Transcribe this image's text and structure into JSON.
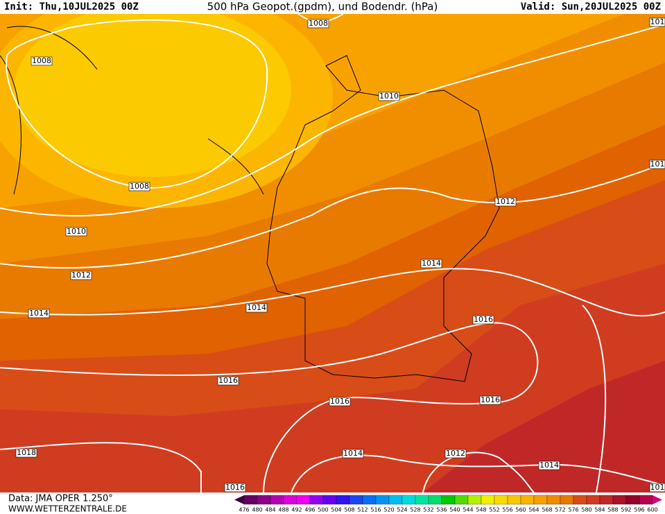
{
  "header": {
    "init": "Init: Thu,10JUL2025 00Z",
    "title": "500 hPa Geopot.(gpdm), und Bodendr. (hPa)",
    "valid": "Valid: Sun,20JUL2025 00Z"
  },
  "isobar_labels": [
    1008,
    1008,
    1010,
    1008,
    1012,
    1010,
    1012,
    1014,
    1014,
    1014,
    1016,
    1016,
    1016,
    1016,
    1018,
    1014,
    1012,
    1014,
    1016,
    101,
    101,
    101
  ],
  "colorbar": {
    "labels": [
      476,
      480,
      484,
      488,
      492,
      496,
      500,
      504,
      508,
      512,
      516,
      520,
      524,
      528,
      532,
      536,
      540,
      544,
      548,
      552,
      556,
      560,
      564,
      568,
      572,
      576,
      580,
      584,
      588,
      592,
      596,
      600
    ]
  },
  "footer": {
    "data": "Data: JMA OPER 1.250°",
    "site": "WWW.WETTERZENTRALE.DE"
  }
}
